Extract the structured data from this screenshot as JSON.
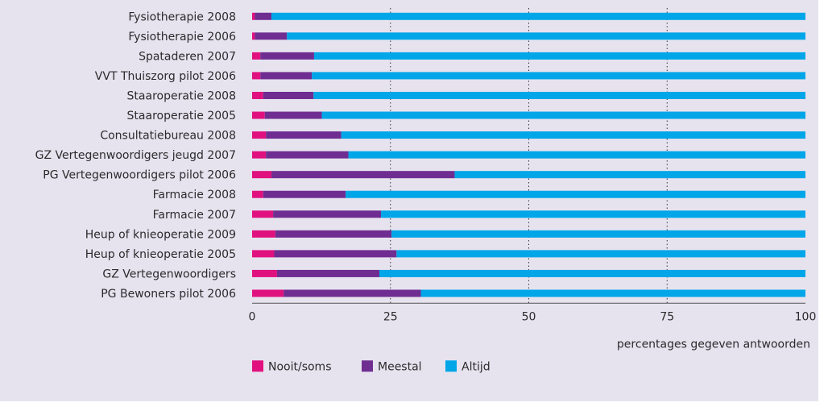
{
  "chart_data": {
    "type": "bar",
    "orientation": "horizontal",
    "stacked": true,
    "categories": [
      "Fysiotherapie 2008",
      "Fysiotherapie 2006",
      "Spataderen 2007",
      "VVT Thuiszorg pilot 2006",
      "Staaroperatie 2008",
      "Staaroperatie 2005",
      "Consultatiebureau 2008",
      "GZ Vertegenwoordigers jeugd 2007",
      "PG Vertegenwoordigers pilot 2006",
      "Farmacie 2008",
      "Farmacie 2007",
      "Heup of knieoperatie 2009",
      "Heup of knieoperatie 2005",
      "GZ Vertegenwoordigers",
      "PG Bewoners pilot 2006"
    ],
    "series": [
      {
        "name": "Nooit/soms",
        "color": "#e0117f",
        "values": [
          0.5,
          0.5,
          1.5,
          1.5,
          2.0,
          2.3,
          2.5,
          2.5,
          3.5,
          2.0,
          3.8,
          4.2,
          4.0,
          4.5,
          5.7
        ]
      },
      {
        "name": "Meestal",
        "color": "#6f2d91",
        "values": [
          3.0,
          5.8,
          9.7,
          9.3,
          9.1,
          10.3,
          13.6,
          14.9,
          33.1,
          14.9,
          19.5,
          21.0,
          22.1,
          18.5,
          24.8
        ]
      },
      {
        "name": "Altijd",
        "color": "#00a6e8",
        "values": [
          96.5,
          93.7,
          88.8,
          89.2,
          88.9,
          87.4,
          83.9,
          82.6,
          63.4,
          83.1,
          76.7,
          74.8,
          73.9,
          77.0,
          69.5
        ]
      }
    ],
    "xticks": [
      "0",
      "25",
      "50",
      "75",
      "100"
    ],
    "xlim": [
      0,
      100
    ],
    "xlabel": "percentages gegeven antwoorden",
    "grid": "vertical dotted",
    "legend_position": "bottom-left"
  }
}
